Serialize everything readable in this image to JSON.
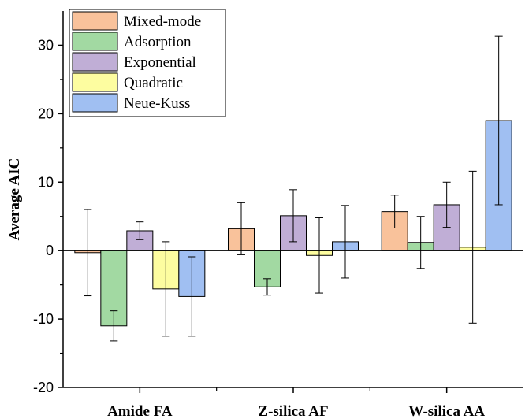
{
  "chart_data": {
    "type": "bar",
    "ylabel": "Average AIC",
    "xlabel": "",
    "ylim": [
      -20,
      35
    ],
    "yticks": [
      -20,
      -10,
      0,
      10,
      20,
      30
    ],
    "categories": [
      "Amide FA",
      "Z-silica AF",
      "W-silica AA"
    ],
    "legend_position": "top-left",
    "series": [
      {
        "name": "Mixed-mode",
        "color": "#f9c29b",
        "values": [
          -0.3,
          3.2,
          5.7
        ],
        "error": [
          6.3,
          3.8,
          2.4
        ]
      },
      {
        "name": "Adsorption",
        "color": "#a2d9a2",
        "values": [
          -11.0,
          -5.3,
          1.2
        ],
        "error": [
          2.2,
          1.2,
          3.8
        ]
      },
      {
        "name": "Exponential",
        "color": "#c0aed6",
        "values": [
          2.9,
          5.1,
          6.7
        ],
        "error": [
          1.3,
          3.8,
          3.3
        ]
      },
      {
        "name": "Quadratic",
        "color": "#fdfda0",
        "values": [
          -5.6,
          -0.7,
          0.5
        ],
        "error": [
          6.9,
          5.5,
          11.1
        ]
      },
      {
        "name": "Neue-Kuss",
        "color": "#a0bff2",
        "values": [
          -6.7,
          1.3,
          19.0
        ],
        "error": [
          5.8,
          5.3,
          12.3
        ]
      }
    ]
  }
}
